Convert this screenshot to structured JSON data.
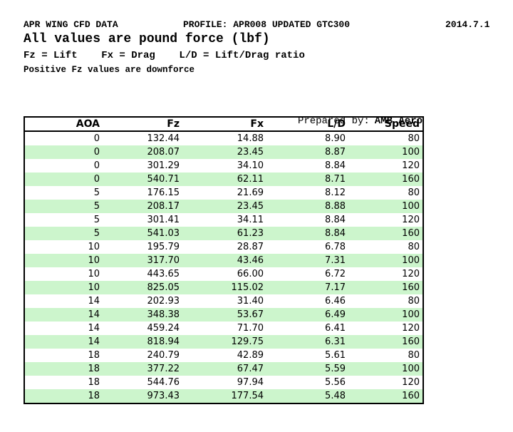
{
  "header": {
    "title": "APR WING CFD DATA",
    "profile": "PROFILE: APR008 UPDATED GTC300",
    "date": "2014.7.1",
    "subtitle": "All values are pound force (lbf)",
    "legend": "Fz = Lift    Fx = Drag    L/D = Lift/Drag ratio",
    "note": "Positive Fz values are downforce"
  },
  "prepared_by": {
    "label": "Prepared by:",
    "name": "AMB Aero"
  },
  "table": {
    "columns": [
      "AOA",
      "Fz",
      "Fx",
      "L/D",
      "Speed"
    ],
    "rows": [
      [
        "0",
        "132.44",
        "14.88",
        "8.90",
        "80"
      ],
      [
        "0",
        "208.07",
        "23.45",
        "8.87",
        "100"
      ],
      [
        "0",
        "301.29",
        "34.10",
        "8.84",
        "120"
      ],
      [
        "0",
        "540.71",
        "62.11",
        "8.71",
        "160"
      ],
      [
        "5",
        "176.15",
        "21.69",
        "8.12",
        "80"
      ],
      [
        "5",
        "208.17",
        "23.45",
        "8.88",
        "100"
      ],
      [
        "5",
        "301.41",
        "34.11",
        "8.84",
        "120"
      ],
      [
        "5",
        "541.03",
        "61.23",
        "8.84",
        "160"
      ],
      [
        "10",
        "195.79",
        "28.87",
        "6.78",
        "80"
      ],
      [
        "10",
        "317.70",
        "43.46",
        "7.31",
        "100"
      ],
      [
        "10",
        "443.65",
        "66.00",
        "6.72",
        "120"
      ],
      [
        "10",
        "825.05",
        "115.02",
        "7.17",
        "160"
      ],
      [
        "14",
        "202.93",
        "31.40",
        "6.46",
        "80"
      ],
      [
        "14",
        "348.38",
        "53.67",
        "6.49",
        "100"
      ],
      [
        "14",
        "459.24",
        "71.70",
        "6.41",
        "120"
      ],
      [
        "14",
        "818.94",
        "129.75",
        "6.31",
        "160"
      ],
      [
        "18",
        "240.79",
        "42.89",
        "5.61",
        "80"
      ],
      [
        "18",
        "377.22",
        "67.47",
        "5.59",
        "100"
      ],
      [
        "18",
        "544.76",
        "97.94",
        "5.56",
        "120"
      ],
      [
        "18",
        "973.43",
        "177.54",
        "5.48",
        "160"
      ]
    ]
  },
  "colors": {
    "stripe_green": "#ccf5cc",
    "border": "#000000"
  }
}
